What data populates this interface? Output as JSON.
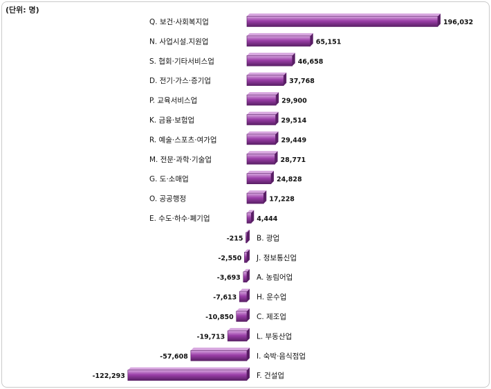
{
  "unit_label": "(단위: 명)",
  "chart_data": {
    "type": "bar",
    "orientation": "horizontal",
    "unit": "명",
    "categories": [
      "Q. 보건·사회복지업",
      "N. 사업시설.지원업",
      "S. 협회·기타서비스업",
      "D. 전기·가스·증기업",
      "P. 교육서비스업",
      "K. 금융·보험업",
      "R. 예술·스포츠·여가업",
      "M. 전문·과학·기술업",
      "G. 도·소매업",
      "O. 공공행정",
      "E. 수도·하수·폐기업",
      "B. 광업",
      "J. 정보통신업",
      "A. 농림어업",
      "H. 운수업",
      "C. 제조업",
      "L. 부동산업",
      "I. 숙박·음식점업",
      "F. 건설업"
    ],
    "values": [
      196032,
      65151,
      46658,
      37768,
      29900,
      29514,
      29449,
      28771,
      24828,
      17228,
      4444,
      -215,
      -2550,
      -3693,
      -7613,
      -10850,
      -19713,
      -57608,
      -122293
    ],
    "value_labels": [
      "196,032",
      "65,151",
      "46,658",
      "37,768",
      "29,900",
      "29,514",
      "29,449",
      "28,771",
      "24,828",
      "17,228",
      "4,444",
      "-215",
      "-2,550",
      "-3,693",
      "-7,613",
      "-10,850",
      "-19,713",
      "-57,608",
      "-122,293"
    ],
    "bar_color": "#9b3fa8",
    "bar_color_dark": "#5a1f66",
    "bar_color_light": "#d7a6df",
    "grid": false,
    "legend": "none"
  }
}
